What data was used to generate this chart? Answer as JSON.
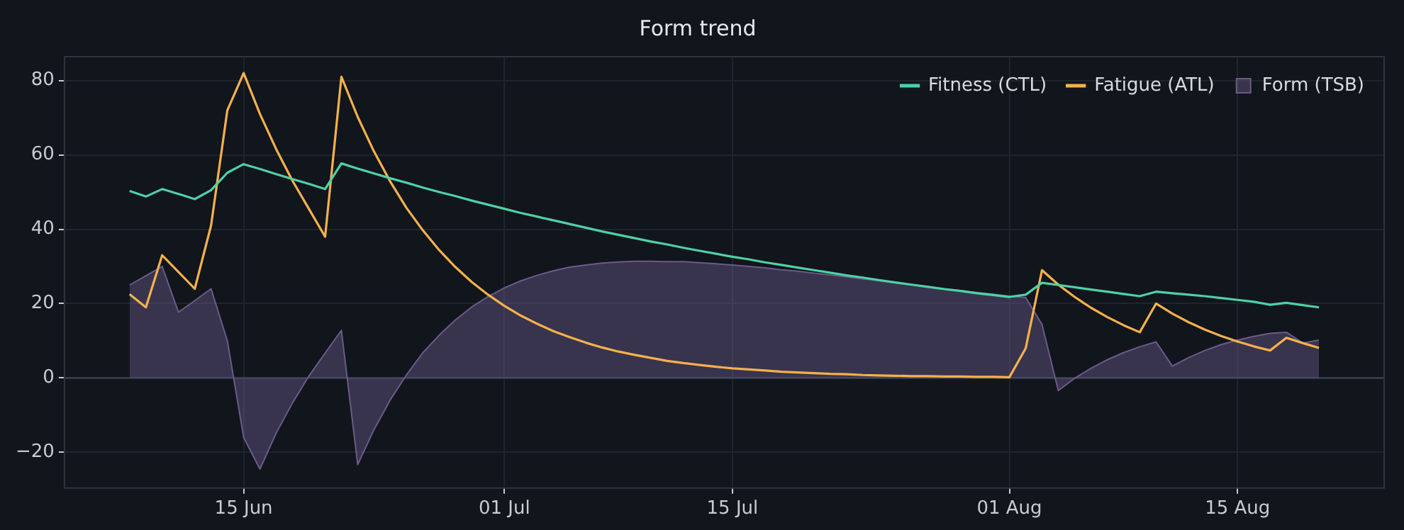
{
  "chart_data": {
    "type": "line",
    "title": "Form trend",
    "x": [
      "--06-08",
      "--06-09",
      "--06-10",
      "--06-11",
      "--06-12",
      "--06-13",
      "--06-14",
      "--06-15",
      "--06-16",
      "--06-17",
      "--06-18",
      "--06-19",
      "--06-20",
      "--06-21",
      "--06-22",
      "--06-23",
      "--06-24",
      "--06-25",
      "--06-26",
      "--06-27",
      "--06-28",
      "--06-29",
      "--06-30",
      "--07-01",
      "--07-02",
      "--07-03",
      "--07-04",
      "--07-05",
      "--07-06",
      "--07-07",
      "--07-08",
      "--07-09",
      "--07-10",
      "--07-11",
      "--07-12",
      "--07-13",
      "--07-14",
      "--07-15",
      "--07-16",
      "--07-17",
      "--07-18",
      "--07-19",
      "--07-20",
      "--07-21",
      "--07-22",
      "--07-23",
      "--07-24",
      "--07-25",
      "--07-26",
      "--07-27",
      "--07-28",
      "--07-29",
      "--07-30",
      "--07-31",
      "--08-01",
      "--08-02",
      "--08-03",
      "--08-04",
      "--08-05",
      "--08-06",
      "--08-07",
      "--08-08",
      "--08-09",
      "--08-10",
      "--08-11",
      "--08-12",
      "--08-13",
      "--08-14",
      "--08-15",
      "--08-16",
      "--08-17",
      "--08-18",
      "--08-19",
      "--08-20"
    ],
    "series": [
      {
        "name": "Fitness (CTL)",
        "color": "#4fd1a5",
        "values": [
          50.3,
          48.8,
          50.8,
          49.5,
          48.1,
          50.5,
          55.2,
          57.5,
          56.2,
          54.8,
          53.5,
          52.2,
          50.8,
          57.7,
          56.3,
          55.0,
          53.7,
          52.5,
          51.2,
          50.0,
          48.9,
          47.7,
          46.6,
          45.5,
          44.4,
          43.4,
          42.4,
          41.4,
          40.4,
          39.4,
          38.5,
          37.6,
          36.7,
          35.9,
          35.0,
          34.2,
          33.4,
          32.6,
          31.9,
          31.1,
          30.4,
          29.7,
          29.0,
          28.3,
          27.6,
          27.0,
          26.3,
          25.7,
          25.1,
          24.5,
          23.9,
          23.4,
          22.8,
          22.3,
          21.8,
          22.4,
          25.6,
          25.0,
          24.4,
          23.8,
          23.2,
          22.6,
          22.0,
          23.2,
          22.8,
          22.4,
          22.0,
          21.5,
          21.0,
          20.5,
          19.7,
          20.2,
          19.6,
          19.0
        ]
      },
      {
        "name": "Fatigue (ATL)",
        "color": "#f5b14c",
        "values": [
          22.5,
          19,
          33,
          28.5,
          24,
          41,
          72,
          82,
          71,
          61.5,
          53,
          45.5,
          38,
          81,
          70.2,
          60.9,
          52.8,
          45.7,
          39.7,
          34.4,
          29.8,
          25.8,
          22.4,
          19.4,
          16.8,
          14.6,
          12.6,
          11.0,
          9.5,
          8.2,
          7.1,
          6.2,
          5.4,
          4.6,
          4.0,
          3.5,
          3.0,
          2.6,
          2.3,
          2.0,
          1.7,
          1.5,
          1.3,
          1.1,
          1.0,
          0.8,
          0.7,
          0.6,
          0.5,
          0.5,
          0.4,
          0.4,
          0.3,
          0.3,
          0.2,
          8,
          29,
          25.1,
          21.8,
          18.9,
          16.4,
          14.2,
          12.3,
          20,
          17.3,
          15.0,
          13.0,
          11.3,
          9.8,
          8.5,
          7.4,
          10.8,
          9.4,
          8.1
        ]
      },
      {
        "name": "Form (TSB)",
        "type": "area",
        "color": "#6b5a8a",
        "values": [
          25,
          27.5,
          30,
          17.7,
          20.8,
          24,
          10,
          -16,
          -24.5,
          -14.8,
          -6.7,
          0.5,
          6.7,
          12.8,
          -23.3,
          -13.9,
          -5.9,
          0.9,
          6.8,
          11.5,
          15.6,
          19.1,
          21.9,
          24.2,
          26.1,
          27.6,
          28.8,
          29.8,
          30.4,
          30.9,
          31.2,
          31.4,
          31.4,
          31.3,
          31.3,
          31.0,
          30.7,
          30.4,
          30.0,
          29.6,
          29.1,
          28.7,
          28.2,
          27.7,
          27.2,
          26.6,
          26.2,
          25.6,
          25.1,
          24.6,
          24.0,
          23.5,
          23.0,
          22.5,
          22.0,
          21.6,
          14.4,
          -3.4,
          -0.1,
          2.6,
          4.9,
          6.8,
          8.4,
          9.7,
          3.2,
          5.5,
          7.4,
          9.0,
          10.2,
          11.2,
          12.0,
          12.3,
          9.4,
          10.2
        ]
      }
    ],
    "xlim": [
      "--06-04",
      "--08-24"
    ],
    "xticks": [
      {
        "value": "--06-15",
        "label": "15 Jun"
      },
      {
        "value": "--07-01",
        "label": "01 Jul"
      },
      {
        "value": "--07-15",
        "label": "15 Jul"
      },
      {
        "value": "--08-01",
        "label": "01 Aug"
      },
      {
        "value": "--08-15",
        "label": "15 Aug"
      }
    ],
    "ylim": [
      -29.6,
      86.4
    ],
    "yticks": [
      {
        "value": -20,
        "label": "−20"
      },
      0,
      20,
      40,
      60,
      80
    ],
    "ref_lines": [
      {
        "axis": "y",
        "value": 0,
        "color": "#3a3f4b"
      }
    ],
    "grid": true,
    "legend": "top right",
    "marker": "none",
    "line_style": "solid"
  }
}
